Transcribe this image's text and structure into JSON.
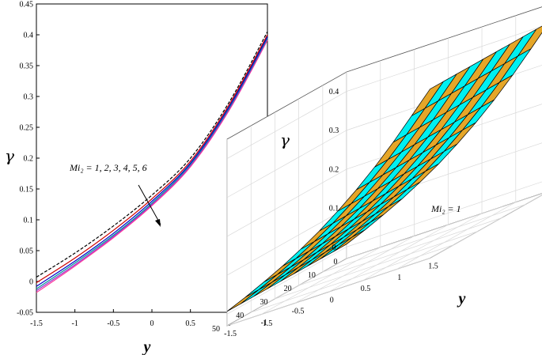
{
  "chart_data": [
    {
      "type": "line",
      "xlabel": "y",
      "ylabel": "γ",
      "xlim": [
        -1.5,
        1.5
      ],
      "ylim": [
        -0.05,
        0.45
      ],
      "xticks": [
        "-1.5",
        "-1",
        "-0.5",
        "0",
        "0.5",
        "1",
        "1.5"
      ],
      "yticks": [
        "-0.05",
        "0",
        "0.05",
        "0.1",
        "0.15",
        "0.2",
        "0.25",
        "0.3",
        "0.35",
        "0.4",
        "0.45"
      ],
      "annotation": "Mi₂ = 1, 2, 3, 4, 5, 6",
      "series": [
        {
          "name": "Mi2=1",
          "color": "#000000",
          "style": "dashed",
          "x": [
            -1.5,
            -1,
            -0.5,
            0,
            0.5,
            1,
            1.5
          ],
          "values": [
            0.007,
            0.046,
            0.09,
            0.14,
            0.2,
            0.29,
            0.405
          ]
        },
        {
          "name": "Mi2=2",
          "color": "#cc0000",
          "style": "solid",
          "x": [
            -1.5,
            -1,
            -0.5,
            0,
            0.5,
            1,
            1.5
          ],
          "values": [
            -0.002,
            0.038,
            0.083,
            0.134,
            0.195,
            0.286,
            0.4
          ]
        },
        {
          "name": "Mi2=3",
          "color": "#0000cc",
          "style": "solid",
          "x": [
            -1.5,
            -1,
            -0.5,
            0,
            0.5,
            1,
            1.5
          ],
          "values": [
            -0.008,
            0.033,
            0.078,
            0.13,
            0.192,
            0.283,
            0.397
          ]
        },
        {
          "name": "Mi2=4",
          "color": "#009999",
          "style": "solid",
          "x": [
            -1.5,
            -1,
            -0.5,
            0,
            0.5,
            1,
            1.5
          ],
          "values": [
            -0.012,
            0.03,
            0.075,
            0.127,
            0.19,
            0.281,
            0.395
          ]
        },
        {
          "name": "Mi2=5",
          "color": "#9933cc",
          "style": "solid",
          "x": [
            -1.5,
            -1,
            -0.5,
            0,
            0.5,
            1,
            1.5
          ],
          "values": [
            -0.015,
            0.027,
            0.073,
            0.125,
            0.188,
            0.279,
            0.393
          ]
        },
        {
          "name": "Mi2=6",
          "color": "#ff3399",
          "style": "solid",
          "x": [
            -1.5,
            -1,
            -0.5,
            0,
            0.5,
            1,
            1.5
          ],
          "values": [
            -0.018,
            0.025,
            0.071,
            0.123,
            0.186,
            0.277,
            0.391
          ]
        }
      ]
    },
    {
      "type": "surface",
      "xlabel": "y",
      "ylabel": "",
      "zlabel": "γ",
      "xticks": [
        "-1.5",
        "-1",
        "-0.5",
        "0",
        "0.5",
        "1",
        "1.5"
      ],
      "yticks": [
        "0",
        "10",
        "20",
        "30",
        "40",
        "50"
      ],
      "zticks": [
        "0",
        "0.1",
        "0.2",
        "0.3",
        "0.4"
      ],
      "xlim": [
        -1.5,
        1.5
      ],
      "ylim": [
        0,
        50
      ],
      "zlim": [
        -0.03,
        0.45
      ],
      "annotation": "Mi₂ = 1",
      "face_colors": [
        "#e5a628",
        "#00f0f0"
      ],
      "x_samples": [
        -1.5,
        -1.227,
        -0.955,
        -0.682,
        -0.409,
        -0.136,
        0.136,
        0.409,
        0.682,
        0.955,
        1.227,
        1.5
      ],
      "z_profile": [
        0.007,
        0.028,
        0.051,
        0.076,
        0.104,
        0.135,
        0.17,
        0.209,
        0.252,
        0.3,
        0.352,
        0.405
      ]
    }
  ]
}
